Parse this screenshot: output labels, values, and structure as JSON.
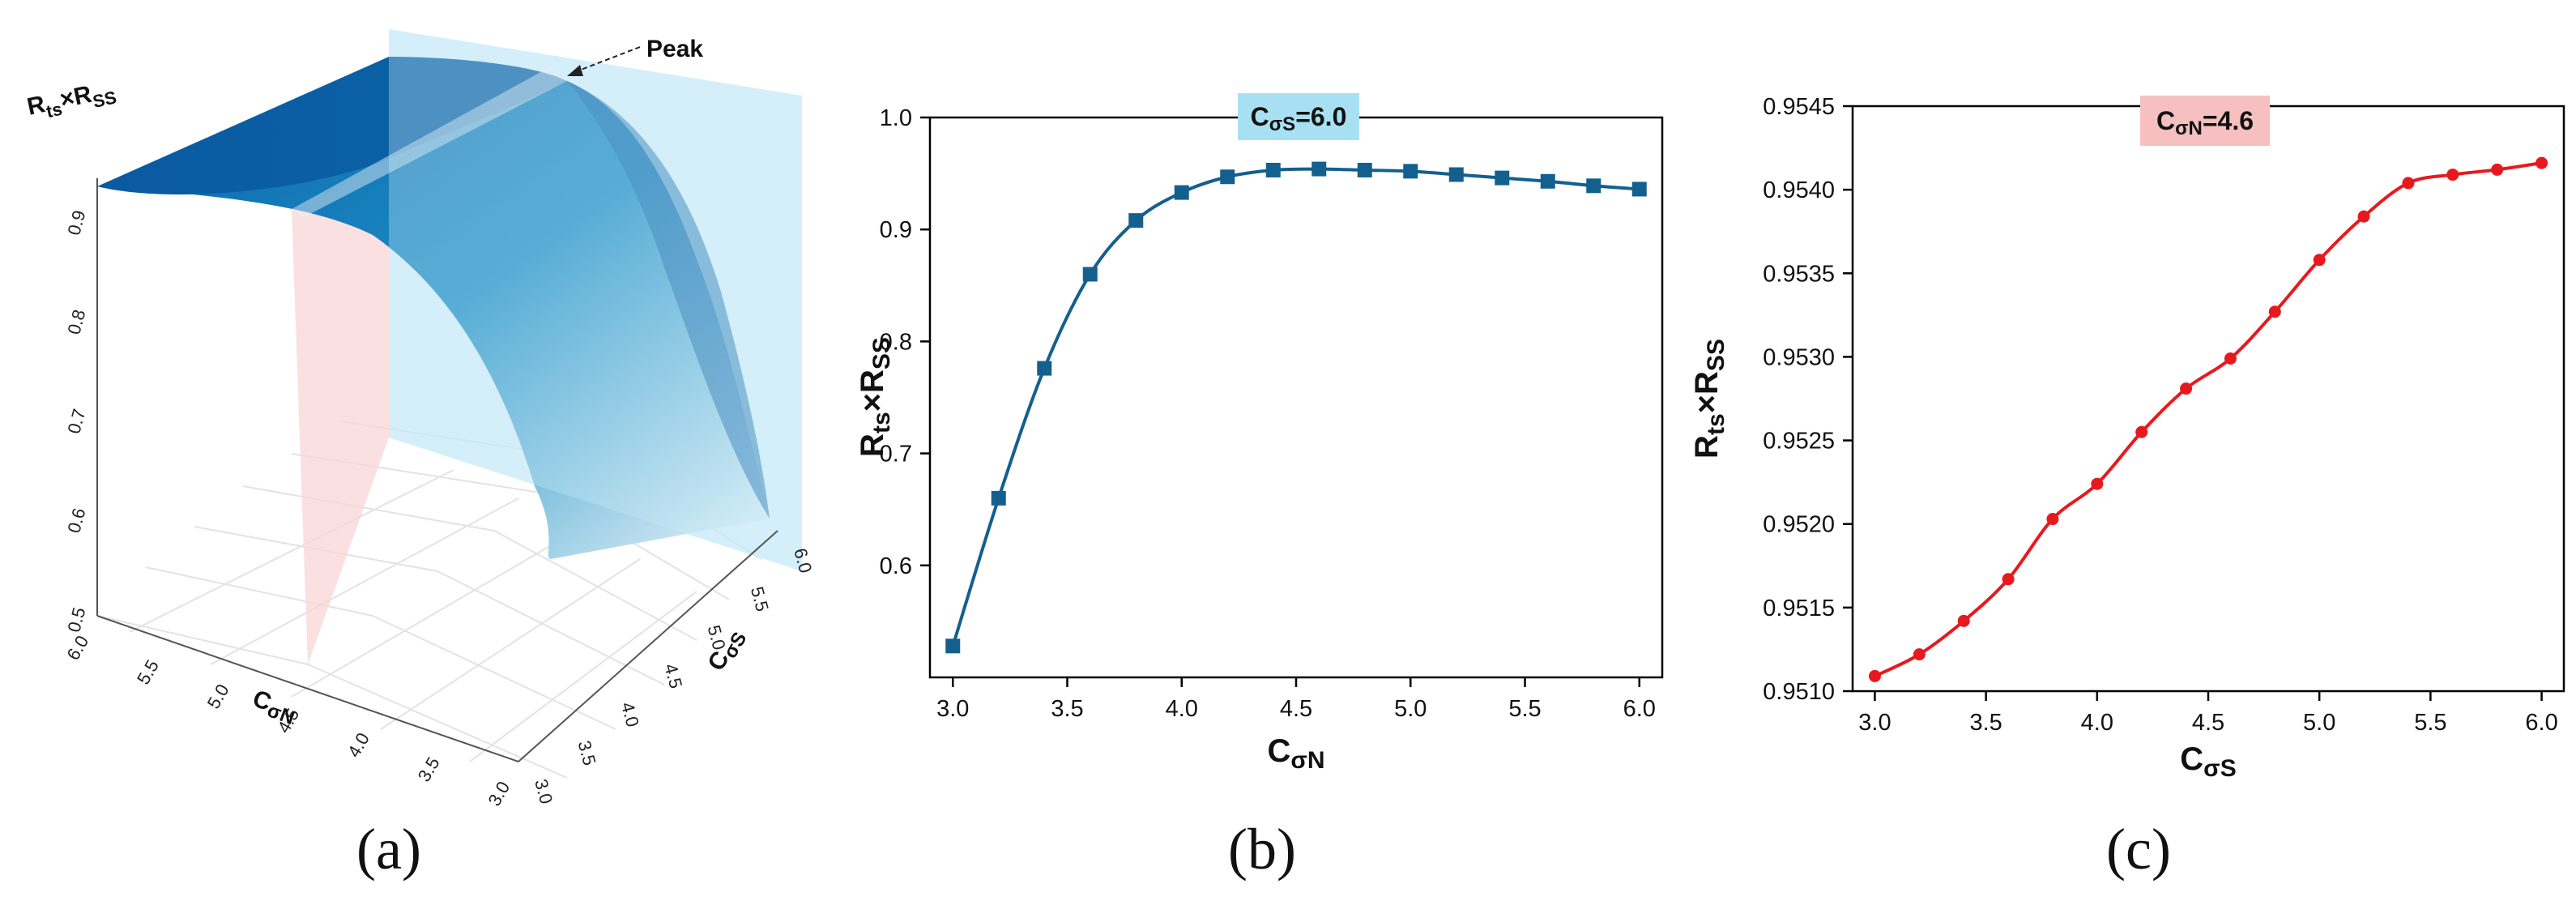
{
  "panels": {
    "a": {
      "label": "(a)",
      "z_title_main": "R",
      "z_title_sub1": "ts",
      "z_title_mid": "×R",
      "z_title_sub2": "SS",
      "z_ticks": [
        "0.5",
        "0.6",
        "0.7",
        "0.8",
        "0.9"
      ],
      "x_title_main": "C",
      "x_title_sub": "σN",
      "x_ticks": [
        "6.0",
        "5.5",
        "5.0",
        "4.5",
        "4.0",
        "3.5",
        "3.0"
      ],
      "y_title_main": "C",
      "y_title_sub": "σS",
      "y_ticks": [
        "3.0",
        "3.5",
        "4.0",
        "4.5",
        "5.0",
        "5.5",
        "6.0"
      ],
      "peak_label": "Peak",
      "colors": {
        "surface_top": "#0b5fa5",
        "surface_light": "#e8f6fb",
        "plane_blue": "#c8eaf7",
        "plane_red": "#f8d6d6"
      }
    },
    "b": {
      "label": "(b)",
      "annotation_main": "C",
      "annotation_sub": "σS",
      "annotation_rest": "=6.0",
      "annotation_bg": "#a8e0f3",
      "xlabel_main": "C",
      "xlabel_sub": "σN",
      "ylabel_main": "R",
      "ylabel_sub1": "ts",
      "ylabel_mid": "×R",
      "ylabel_sub2": "SS",
      "color": "#13608f"
    },
    "c": {
      "label": "(c)",
      "annotation_main": "C",
      "annotation_sub": "σN",
      "annotation_rest": "=4.6",
      "annotation_bg": "#f6c0c0",
      "xlabel_main": "C",
      "xlabel_sub": "σS",
      "ylabel_main": "R",
      "ylabel_sub1": "ts",
      "ylabel_mid": "×R",
      "ylabel_sub2": "SS",
      "color": "#e8191e"
    }
  },
  "chart_data": [
    {
      "type": "surface",
      "panel": "a",
      "xlabel": "CσN",
      "ylabel": "CσS",
      "zlabel": "Rts×RSS",
      "xlim": [
        3.0,
        6.0
      ],
      "ylim": [
        3.0,
        6.0
      ],
      "zlim": [
        0.5,
        0.95
      ],
      "annotation": "Peak"
    },
    {
      "type": "line",
      "panel": "b",
      "x": [
        3.0,
        3.2,
        3.4,
        3.6,
        3.8,
        4.0,
        4.2,
        4.4,
        4.6,
        4.8,
        5.0,
        5.2,
        5.4,
        5.6,
        5.8,
        6.0
      ],
      "values": [
        0.528,
        0.66,
        0.776,
        0.86,
        0.908,
        0.933,
        0.947,
        0.953,
        0.954,
        0.953,
        0.952,
        0.949,
        0.946,
        0.943,
        0.939,
        0.936
      ],
      "xlim": [
        2.9,
        6.1
      ],
      "ylim": [
        0.5,
        1.0
      ],
      "xticks": [
        3.0,
        3.5,
        4.0,
        4.5,
        5.0,
        5.5,
        6.0
      ],
      "yticks": [
        0.6,
        0.7,
        0.8,
        0.9,
        1.0
      ],
      "tick_decimals": {
        "x": 1,
        "y": 1
      },
      "marker": "square"
    },
    {
      "type": "line",
      "panel": "c",
      "x": [
        3.0,
        3.2,
        3.4,
        3.6,
        3.8,
        4.0,
        4.2,
        4.4,
        4.6,
        4.8,
        5.0,
        5.2,
        5.4,
        5.6,
        5.8,
        6.0
      ],
      "values": [
        0.95109,
        0.95122,
        0.95142,
        0.95167,
        0.95203,
        0.95224,
        0.95255,
        0.95281,
        0.95299,
        0.95327,
        0.95358,
        0.95384,
        0.95404,
        0.95409,
        0.95412,
        0.95416
      ],
      "xlim": [
        2.9,
        6.1
      ],
      "ylim": [
        0.951,
        0.9545
      ],
      "xticks": [
        3.0,
        3.5,
        4.0,
        4.5,
        5.0,
        5.5,
        6.0
      ],
      "yticks": [
        0.951,
        0.9515,
        0.952,
        0.9525,
        0.953,
        0.9535,
        0.954,
        0.9545
      ],
      "tick_decimals": {
        "x": 1,
        "y": 4
      },
      "marker": "circle"
    }
  ]
}
